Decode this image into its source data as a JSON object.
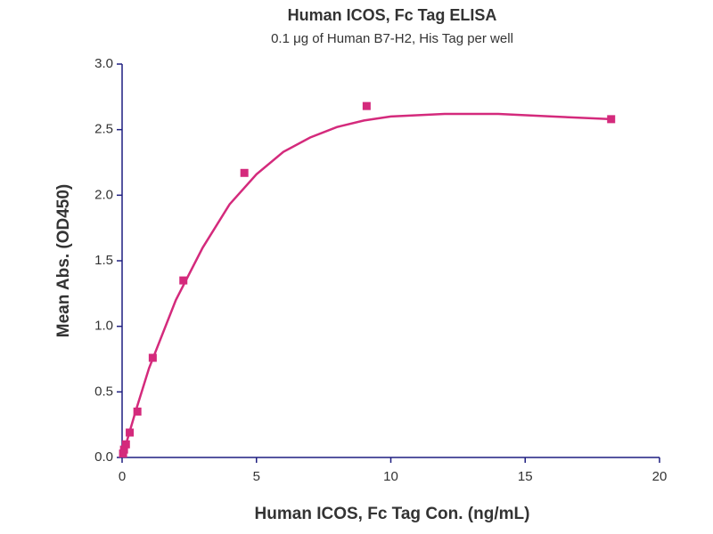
{
  "chart_data": {
    "type": "scatter",
    "title": "Human ICOS, Fc Tag ELISA",
    "subtitle": "0.1 μg of Human B7-H2, His Tag per well",
    "x_label": "Human ICOS, Fc Tag Con. (ng/mL)",
    "y_label": "Mean Abs. (OD450)",
    "xlim": [
      0,
      20
    ],
    "xticks": [
      0,
      5,
      10,
      15,
      20
    ],
    "ylim": [
      0,
      3
    ],
    "yticks": [
      {
        "value": 0,
        "label": "0.0"
      },
      {
        "value": 0.5,
        "label": "0.5"
      },
      {
        "value": 1,
        "label": "1.0"
      },
      {
        "value": 1.5,
        "label": "1.5"
      },
      {
        "value": 2,
        "label": "2.0"
      },
      {
        "value": 2.5,
        "label": "2.5"
      },
      {
        "value": 3,
        "label": "3.0"
      }
    ],
    "series": [
      {
        "type": "scatter",
        "color": "#d42a7c",
        "x": [
          0.036,
          0.071,
          0.142,
          0.284,
          0.569,
          1.14,
          2.28,
          4.55,
          9.1,
          18.2
        ],
        "values": [
          0.03,
          0.06,
          0.1,
          0.19,
          0.35,
          0.76,
          1.35,
          2.17,
          2.68,
          2.58
        ]
      },
      {
        "type": "line",
        "color": "#d42a7c",
        "x": [
          0,
          0.5,
          1,
          2,
          3,
          4,
          5,
          6,
          7,
          8,
          9,
          10,
          12,
          14,
          16,
          18.2
        ],
        "values": [
          0,
          0.35,
          0.68,
          1.2,
          1.6,
          1.93,
          2.16,
          2.33,
          2.44,
          2.52,
          2.57,
          2.6,
          2.62,
          2.62,
          2.6,
          2.58
        ]
      }
    ]
  }
}
